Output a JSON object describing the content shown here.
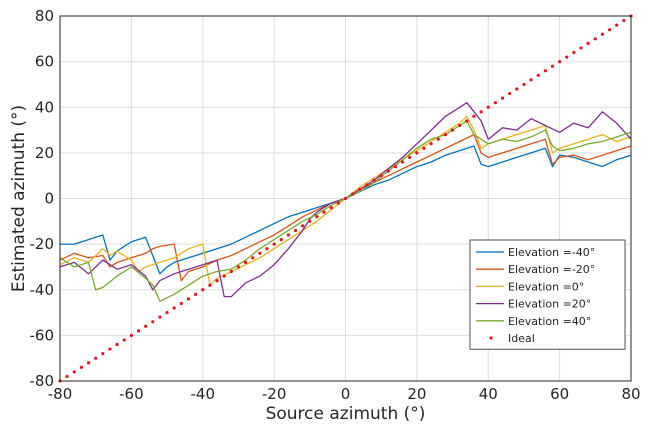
{
  "chart_data": {
    "type": "line",
    "xlabel": "Source azimuth (°)",
    "ylabel": "Estimated azimuth (°)",
    "xlim": [
      -80,
      80
    ],
    "ylim": [
      -80,
      80
    ],
    "xticks": [
      "-80",
      "-60",
      "-40",
      "-20",
      "0",
      "20",
      "40",
      "60",
      "80"
    ],
    "yticks": [
      "80",
      "60",
      "40",
      "20",
      "0",
      "-20",
      "-40",
      "-60",
      "-80"
    ],
    "grid": true,
    "legend_position": "lower-right",
    "series": [
      {
        "name": "Elevation =-40°",
        "color": "#0072BD",
        "style": "line",
        "x": [
          -80,
          -76,
          -72,
          -68,
          -66,
          -64,
          -60,
          -56,
          -52,
          -50,
          -48,
          -44,
          -40,
          -36,
          -32,
          -28,
          -24,
          -20,
          -16,
          -12,
          -8,
          -4,
          0,
          4,
          8,
          12,
          16,
          20,
          24,
          28,
          32,
          36,
          38,
          40,
          44,
          48,
          52,
          56,
          58,
          60,
          64,
          68,
          72,
          76,
          80
        ],
        "y": [
          -20,
          -20,
          -18,
          -16,
          -27,
          -23,
          -19,
          -17,
          -33,
          -30,
          -28,
          -26,
          -24,
          -22,
          -20,
          -17,
          -14,
          -11,
          -8,
          -6,
          -4,
          -2,
          0,
          3,
          6,
          8,
          11,
          14,
          16,
          19,
          21,
          23,
          15,
          14,
          16,
          18,
          20,
          22,
          14,
          19,
          18,
          16,
          14,
          17,
          19
        ]
      },
      {
        "name": "Elevation =-20°",
        "color": "#D95319",
        "style": "line",
        "x": [
          -80,
          -76,
          -72,
          -68,
          -66,
          -64,
          -60,
          -56,
          -54,
          -52,
          -48,
          -46,
          -44,
          -40,
          -36,
          -32,
          -28,
          -24,
          -20,
          -16,
          -12,
          -8,
          -4,
          0,
          4,
          8,
          12,
          16,
          20,
          24,
          28,
          32,
          36,
          38,
          40,
          44,
          48,
          52,
          56,
          58,
          60,
          64,
          68,
          72,
          76,
          80
        ],
        "y": [
          -27,
          -24,
          -26,
          -25,
          -30,
          -28,
          -26,
          -24,
          -22,
          -21,
          -20,
          -36,
          -32,
          -30,
          -27,
          -25,
          -22,
          -19,
          -16,
          -12,
          -8,
          -5,
          -2,
          0,
          4,
          7,
          10,
          13,
          16,
          19,
          22,
          25,
          28,
          20,
          18,
          20,
          22,
          24,
          26,
          15,
          18,
          19,
          17,
          19,
          21,
          23
        ]
      },
      {
        "name": "Elevation =0°",
        "color": "#EDB120",
        "style": "line",
        "x": [
          -80,
          -76,
          -72,
          -68,
          -66,
          -64,
          -60,
          -58,
          -56,
          -52,
          -48,
          -46,
          -44,
          -40,
          -38,
          -36,
          -32,
          -28,
          -24,
          -20,
          -16,
          -12,
          -8,
          -4,
          0,
          4,
          8,
          12,
          16,
          20,
          24,
          28,
          32,
          34,
          36,
          38,
          40,
          44,
          48,
          52,
          56,
          58,
          60,
          64,
          68,
          72,
          76,
          80
        ],
        "y": [
          -29,
          -26,
          -28,
          -22,
          -25,
          -23,
          -27,
          -32,
          -30,
          -28,
          -26,
          -24,
          -22,
          -20,
          -38,
          -35,
          -32,
          -29,
          -26,
          -22,
          -18,
          -14,
          -10,
          -5,
          0,
          5,
          9,
          13,
          17,
          21,
          25,
          29,
          33,
          36,
          30,
          22,
          24,
          26,
          28,
          30,
          32,
          20,
          22,
          24,
          26,
          28,
          25,
          27
        ]
      },
      {
        "name": "Elevation =20°",
        "color": "#7E2F8E",
        "style": "line",
        "x": [
          -80,
          -76,
          -72,
          -68,
          -64,
          -60,
          -56,
          -54,
          -52,
          -48,
          -44,
          -40,
          -36,
          -34,
          -32,
          -30,
          -28,
          -24,
          -20,
          -16,
          -12,
          -10,
          -8,
          -4,
          0,
          4,
          8,
          12,
          16,
          20,
          24,
          28,
          32,
          34,
          36,
          38,
          40,
          44,
          48,
          52,
          56,
          60,
          64,
          68,
          72,
          76,
          80
        ],
        "y": [
          -30,
          -28,
          -33,
          -27,
          -31,
          -29,
          -34,
          -40,
          -36,
          -33,
          -31,
          -29,
          -27,
          -43,
          -43,
          -40,
          -37,
          -34,
          -29,
          -22,
          -14,
          -9,
          -6,
          -2,
          0,
          4,
          8,
          13,
          18,
          24,
          30,
          36,
          40,
          42,
          38,
          34,
          26,
          31,
          30,
          35,
          32,
          29,
          33,
          31,
          38,
          33,
          26
        ]
      },
      {
        "name": "Elevation =40°",
        "color": "#77AC30",
        "style": "line",
        "x": [
          -80,
          -76,
          -72,
          -70,
          -68,
          -64,
          -60,
          -56,
          -54,
          -52,
          -48,
          -44,
          -40,
          -36,
          -32,
          -28,
          -24,
          -20,
          -16,
          -12,
          -8,
          -4,
          0,
          4,
          8,
          12,
          16,
          20,
          24,
          28,
          32,
          34,
          36,
          38,
          40,
          44,
          48,
          52,
          56,
          58,
          60,
          64,
          68,
          72,
          76,
          80
        ],
        "y": [
          -26,
          -30,
          -28,
          -40,
          -39,
          -34,
          -30,
          -35,
          -38,
          -45,
          -42,
          -38,
          -34,
          -32,
          -31,
          -27,
          -22,
          -18,
          -14,
          -10,
          -7,
          -3,
          0,
          3,
          7,
          12,
          17,
          22,
          26,
          28,
          32,
          34,
          28,
          26,
          24,
          26,
          25,
          27,
          30,
          23,
          21,
          22,
          24,
          25,
          27,
          29
        ]
      },
      {
        "name": "Ideal",
        "color": "#E8141B",
        "style": "dotted",
        "x": [
          -80,
          80
        ],
        "y": [
          -80,
          80
        ]
      }
    ]
  }
}
